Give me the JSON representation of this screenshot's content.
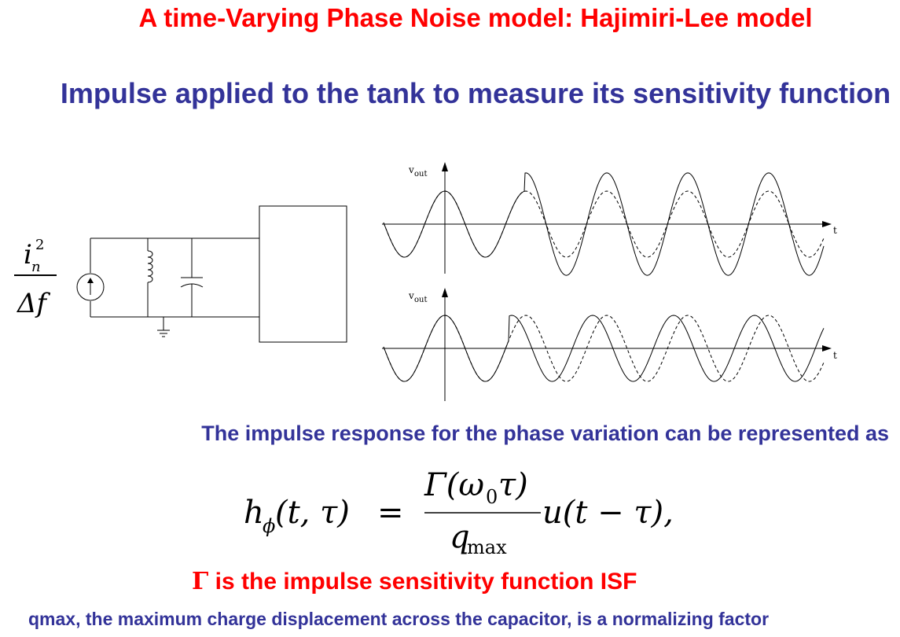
{
  "header": {
    "title": "A time-Varying Phase Noise model: Hajimiri-Lee model",
    "subtitle": "Impulse applied to the tank to measure its sensitivity function"
  },
  "circuit": {
    "source_label_numerator": "i",
    "source_label_subscript": "n",
    "source_label_superscript": "2",
    "source_label_denominator": "Δf"
  },
  "waveforms": {
    "top_ylabel": "v",
    "top_ylabel_sub": "out",
    "top_xlabel": "t",
    "bottom_ylabel": "v",
    "bottom_ylabel_sub": "out",
    "bottom_xlabel": "t"
  },
  "body": {
    "impulse_response_text": "The impulse response for the phase variation can be represented as",
    "isf_symbol": "Γ",
    "isf_text": " is the impulse sensitivity function ISF",
    "qmax_text": "qmax, the maximum charge displacement across the capacitor, is a normalizing factor"
  },
  "equation": {
    "lhs_h": "h",
    "lhs_sub": "ϕ",
    "lhs_args": "(t, τ)",
    "equals": "=",
    "numerator": "Γ(ω",
    "numerator_sub": "0",
    "numerator_end": "τ)",
    "denominator": "q",
    "denominator_sub": "max",
    "rhs": "u(t − τ),"
  },
  "colors": {
    "title": "#ff0000",
    "heading": "#333399",
    "isf": "#ff0000"
  }
}
